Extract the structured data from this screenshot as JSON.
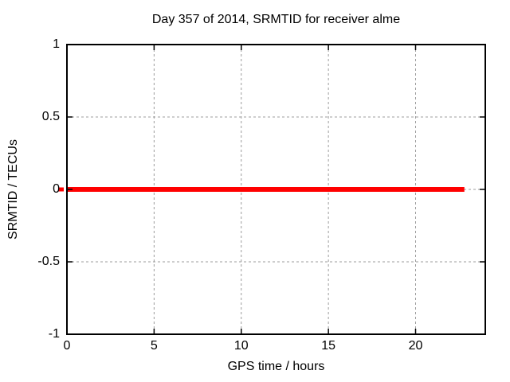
{
  "page": {
    "background": "#ffffff"
  },
  "chart_data": {
    "type": "line",
    "title": "Day 357 of 2014, SRMTID for receiver alme",
    "xlabel": "GPS time / hours",
    "ylabel": "SRMTID / TECUs",
    "xlim": [
      0,
      24
    ],
    "ylim": [
      -1,
      1
    ],
    "xticks": [
      0,
      5,
      10,
      15,
      20
    ],
    "xtick_labels": [
      "0",
      "5",
      "10",
      "15",
      "20"
    ],
    "yticks": [
      1,
      0.5,
      0,
      -0.5,
      -1
    ],
    "ytick_labels": [
      "1",
      "0.5",
      "0",
      "-0.5",
      "-1"
    ],
    "grid": true,
    "grid_color": "#9c9c9c",
    "border_color": "#000000",
    "text_color": "#000000",
    "legend": "none",
    "series": [
      {
        "name": "SRMTID",
        "color": "#ff0000",
        "linewidth": 6,
        "x": [
          0,
          22.8
        ],
        "y": [
          0,
          0
        ]
      }
    ]
  }
}
